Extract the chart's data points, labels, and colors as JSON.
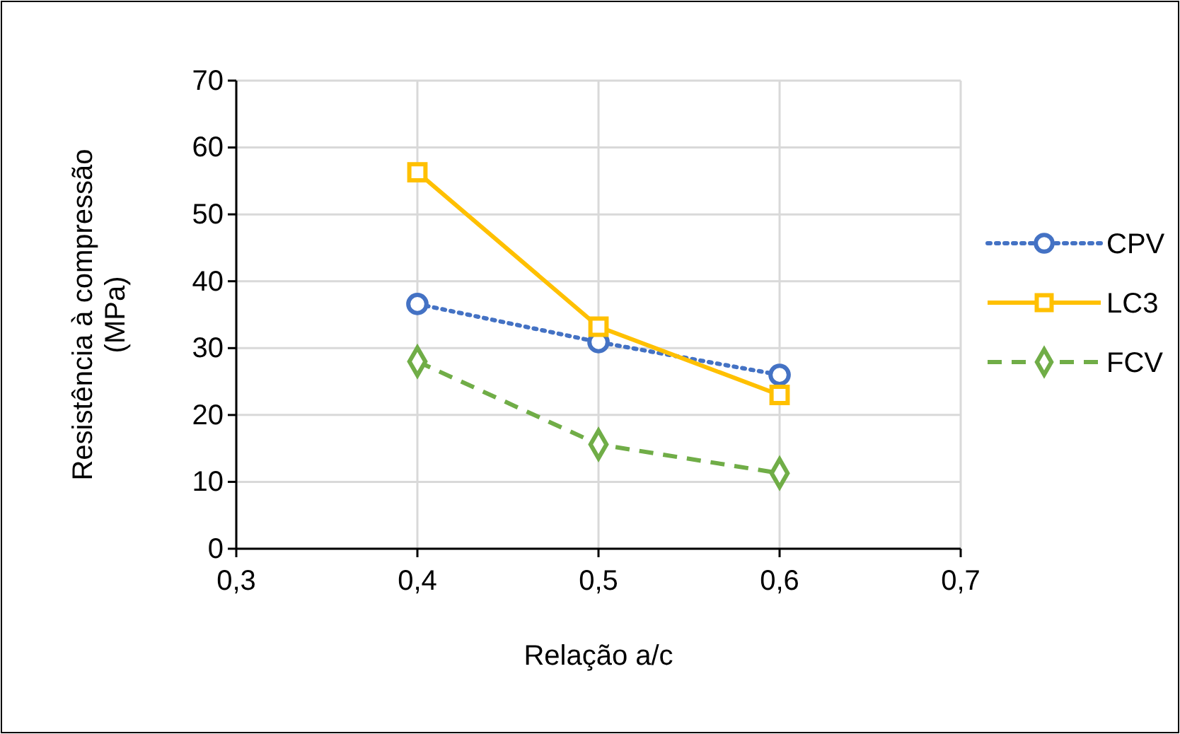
{
  "chart_data": {
    "type": "line",
    "xlabel": "Relação a/c",
    "ylabel": "Resistência à compressão (MPa)",
    "xlim": [
      0.3,
      0.7
    ],
    "xticks": [
      {
        "value": 0.3,
        "label": "0,3"
      },
      {
        "value": 0.4,
        "label": "0,4"
      },
      {
        "value": 0.5,
        "label": "0,5"
      },
      {
        "value": 0.6,
        "label": "0,6"
      },
      {
        "value": 0.7,
        "label": "0,7"
      }
    ],
    "ylim": [
      0,
      70
    ],
    "yticks": [
      0,
      10,
      20,
      30,
      40,
      50,
      60,
      70
    ],
    "grid": true,
    "legend": "right",
    "x": [
      0.4,
      0.5,
      0.6
    ],
    "series": [
      {
        "name": "CPV",
        "color": "#4472c4",
        "values": [
          36.6,
          30.9,
          26.0
        ],
        "marker": "circle",
        "line_style": "dotted"
      },
      {
        "name": "LC3",
        "color": "#ffc000",
        "values": [
          56.3,
          33.2,
          23.0
        ],
        "marker": "square",
        "line_style": "solid"
      },
      {
        "name": "FCV",
        "color": "#70ad47",
        "values": [
          28.0,
          15.6,
          11.3
        ],
        "marker": "diamond",
        "line_style": "dashed"
      }
    ]
  }
}
